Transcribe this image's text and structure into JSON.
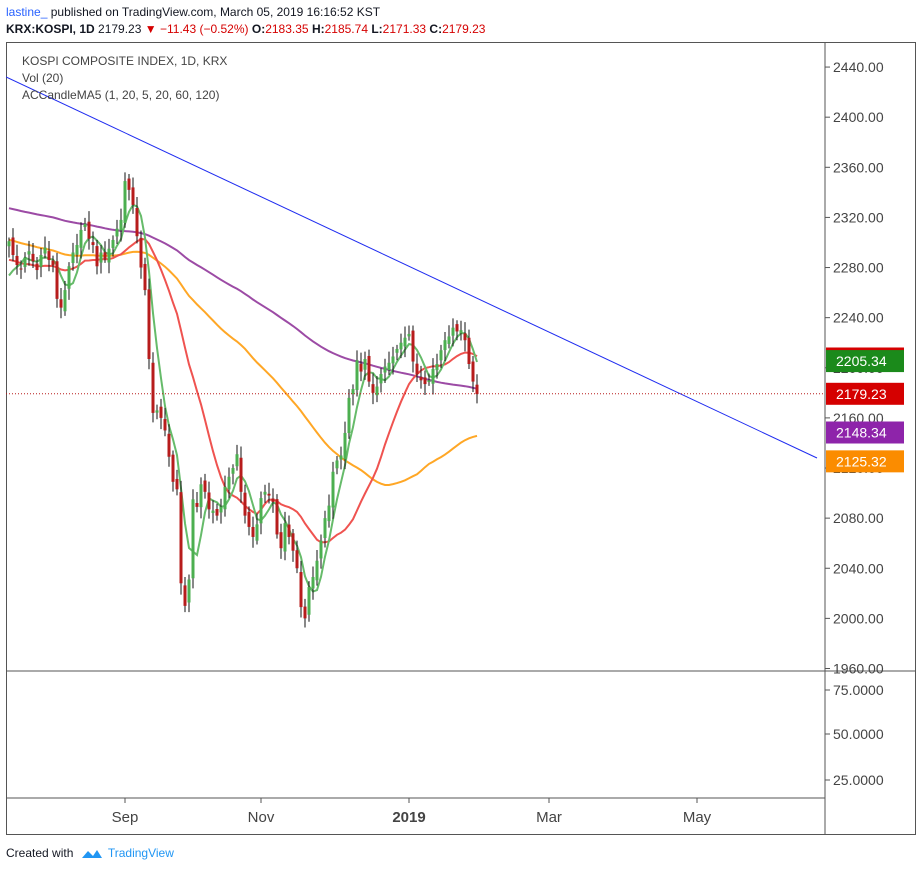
{
  "header": {
    "user": "lastine_",
    "published": "published on TradingView.com, March 05, 2019 16:16:52 KST",
    "symbol": "KRX:KOSPI, 1D",
    "last": "2179.23",
    "change": "−11.43 (−0.52%)",
    "o_label": "O:",
    "o_val": "2183.35",
    "h_label": "H:",
    "h_val": "2185.74",
    "l_label": "L:",
    "l_val": "2171.33",
    "c_label": "C:",
    "c_val": "2179.23"
  },
  "legend": {
    "title": "KOSPI COMPOSITE INDEX, 1D, KRX",
    "vol": "Vol (20)",
    "ma": "ACCandleMA5 (1, 20, 5, 20, 60, 120)"
  },
  "footer": {
    "created": "Created with",
    "brand": "TradingView"
  },
  "colors": {
    "up": "#4caf50",
    "down": "#b71c1c",
    "ma5": "#66bb6a",
    "ma20": "#ef5350",
    "ma60": "#ffa726",
    "ma120": "#9c4ba5",
    "trend": "#1f2cf0",
    "last_line": "#b71c1c"
  },
  "chart_data": {
    "type": "candlestick",
    "xlabels": [
      "Sep",
      "Nov",
      "2019",
      "Mar",
      "May"
    ],
    "y_ticks": [
      "2440.00",
      "2400.00",
      "2360.00",
      "2320.00",
      "2280.00",
      "2240.00",
      "2200.00",
      "2160.00",
      "2120.00",
      "2080.00",
      "2040.00",
      "2000.00",
      "1960.00"
    ],
    "ylim": [
      1958,
      2460
    ],
    "vol_ticks": [
      "75.0000",
      "50.0000",
      "25.0000"
    ],
    "price_labels": [
      {
        "text": "2207.41",
        "value": 2207.41,
        "color": "#d50000"
      },
      {
        "text": "2205.34",
        "value": 2205.34,
        "color": "#1b8a1b"
      },
      {
        "text": "2179.23",
        "value": 2179.23,
        "color": "#d50000"
      },
      {
        "text": "2148.34",
        "value": 2148.34,
        "color": "#8e24aa"
      },
      {
        "text": "2125.32",
        "value": 2125.32,
        "color": "#fb8c00"
      }
    ],
    "last_close": 2179.23,
    "trendline": [
      [
        -6,
        2440
      ],
      [
        202,
        2128
      ]
    ],
    "closes": [
      2301,
      2290,
      2282,
      2279,
      2288,
      2293,
      2285,
      2278,
      2290,
      2296,
      2286,
      2282,
      2255,
      2248,
      2262,
      2281,
      2292,
      2298,
      2310,
      2315,
      2303,
      2298,
      2281,
      2292,
      2287,
      2295,
      2302,
      2311,
      2318,
      2349,
      2342,
      2330,
      2305,
      2280,
      2262,
      2207,
      2164,
      2166,
      2160,
      2150,
      2129,
      2109,
      2103,
      2028,
      2010,
      2031,
      2095,
      2089,
      2107,
      2101,
      2087,
      2086,
      2082,
      2089,
      2105,
      2113,
      2120,
      2131,
      2101,
      2082,
      2073,
      2065,
      2075,
      2096,
      2101,
      2098,
      2093,
      2067,
      2056,
      2076,
      2065,
      2054,
      2040,
      2009,
      2000,
      2025,
      2033,
      2046,
      2062,
      2080,
      2090,
      2117,
      2126,
      2130,
      2148,
      2176,
      2183,
      2206,
      2197,
      2207,
      2189,
      2180,
      2185,
      2195,
      2201,
      2204,
      2209,
      2215,
      2220,
      2224,
      2227,
      2205,
      2195,
      2190,
      2187,
      2190,
      2199,
      2203,
      2214,
      2222,
      2225,
      2232,
      2229,
      2230,
      2222,
      2203,
      2189,
      2179
    ]
  }
}
